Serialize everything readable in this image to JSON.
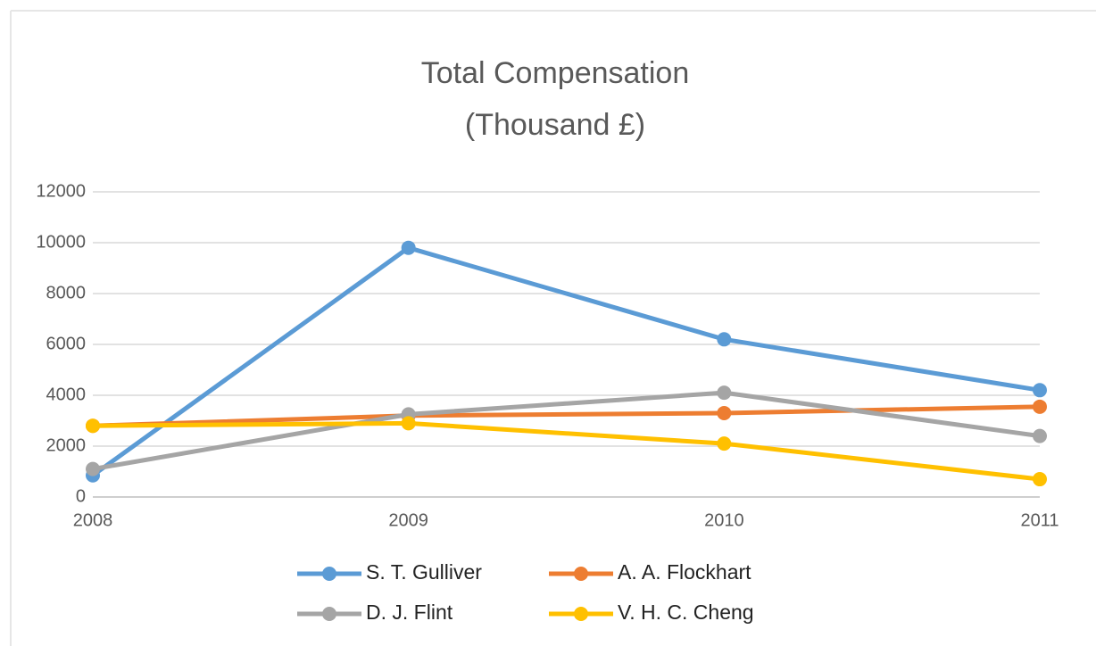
{
  "chart_data": {
    "type": "line",
    "title": [
      "Total Compensation",
      "(Thousand £)"
    ],
    "categories": [
      "2008",
      "2009",
      "2010",
      "2011"
    ],
    "series": [
      {
        "name": "S. T. Gulliver",
        "color": "#5b9bd5",
        "values": [
          850,
          9800,
          6200,
          4200
        ]
      },
      {
        "name": "A. A. Flockhart",
        "color": "#ed7d31",
        "values": [
          2800,
          3200,
          3300,
          3550
        ]
      },
      {
        "name": "D. J. Flint",
        "color": "#a5a5a5",
        "values": [
          1100,
          3250,
          4100,
          2400
        ]
      },
      {
        "name": "V. H. C. Cheng",
        "color": "#ffc000",
        "values": [
          2800,
          2900,
          2100,
          700
        ]
      }
    ],
    "ylim": [
      0,
      12000
    ],
    "yticks": [
      0,
      2000,
      4000,
      6000,
      8000,
      10000,
      12000
    ],
    "grid": true,
    "legend": "bottom"
  }
}
